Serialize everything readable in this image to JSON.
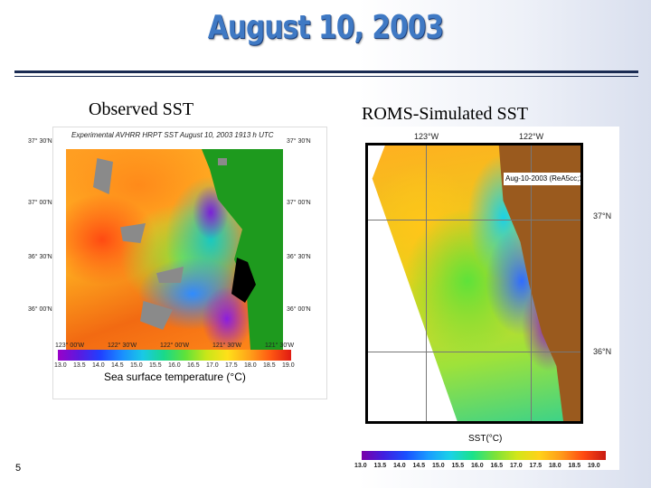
{
  "slide": {
    "title": "August 10, 2003",
    "slide_number": "5"
  },
  "left": {
    "label": "Observed SST",
    "map_header": "Experimental AVHRR HRPT SST August 10, 2003 1913 h UTC",
    "lat_labels": [
      "37° 30'N",
      "37° 00'N",
      "36° 30'N",
      "36° 00'N"
    ],
    "lon_labels": [
      "123° 00'W",
      "122° 30'W",
      "122° 00'W",
      "121° 30'W"
    ],
    "colorbar_ticks": [
      "13.0",
      "13.5",
      "14.0",
      "14.5",
      "15.0",
      "15.5",
      "16.0",
      "16.5",
      "17.0",
      "17.5",
      "18.0",
      "18.5",
      "19.0"
    ],
    "colorbar_caption": "Sea surface temperature (°C)"
  },
  "right": {
    "label": "ROMS-Simulated SST",
    "lon_labels": [
      "123°W",
      "122°W"
    ],
    "lat_labels": [
      "37°N",
      "36°N"
    ],
    "inset": "Aug-10-2003 (ReA5cc;12",
    "colorbar_caption": "SST(°C)",
    "colorbar_ticks": [
      "13.0",
      "13.5",
      "14.0",
      "14.5",
      "15.0",
      "15.5",
      "16.0",
      "16.5",
      "17.0",
      "17.5",
      "18.0",
      "18.5",
      "19.0"
    ]
  },
  "colors": {
    "title": "#3f79c4",
    "rule": "#1a2b52",
    "land_observed": "#1e9a1e",
    "land_simulated": "#9a5a1e"
  }
}
